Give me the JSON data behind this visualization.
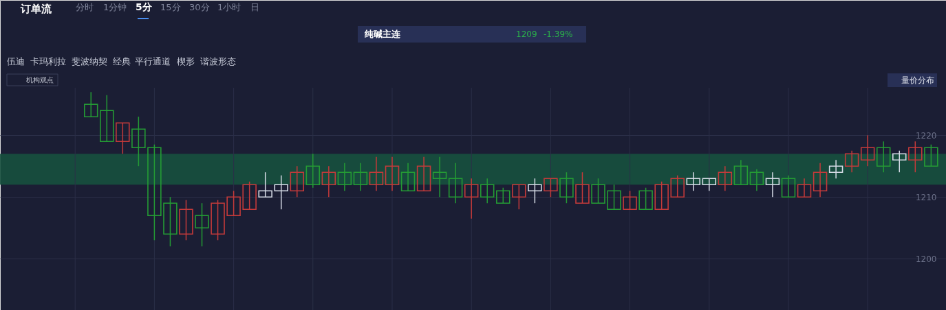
{
  "chart_data": {
    "type": "candlestick",
    "title": "订单流",
    "subtitle": "纯碱主连",
    "annotations": [
      "1209",
      "-1.39%",
      "分时",
      "1分钟",
      "5分",
      "15分",
      "30分",
      "1小时",
      "日",
      "伍迪",
      "卡玛利拉",
      "斐波纳契",
      "经典",
      "平行通道",
      "楔形",
      "谐波形态",
      "机构观点",
      "量价分布"
    ],
    "categories": [
      null,
      null,
      null,
      null,
      null,
      null,
      null,
      null,
      null,
      null,
      null,
      null,
      null,
      null,
      null,
      null,
      null,
      null,
      null,
      null,
      null,
      null,
      null,
      null,
      null,
      null,
      null,
      null,
      null,
      null,
      null,
      null,
      null,
      null,
      null,
      null,
      null,
      null,
      null,
      null,
      null,
      null,
      null,
      null,
      null,
      null,
      null,
      null,
      null,
      null,
      null,
      null,
      null,
      null,
      null,
      null,
      null,
      null
    ],
    "ohlc": [
      null,
      null,
      null,
      null,
      [
        1225,
        1227,
        1223,
        1223
      ],
      [
        1224,
        1226.5,
        1219,
        1219
      ],
      [
        1219,
        1222,
        1217,
        1222
      ],
      [
        1221,
        1223,
        1215,
        1218
      ],
      [
        1218,
        1218.5,
        1203,
        1207
      ],
      [
        1209,
        1210,
        1202,
        1204
      ],
      [
        1204,
        1209.5,
        1203,
        1208
      ],
      [
        1207,
        1209,
        1202,
        1205
      ],
      [
        1204,
        1209.5,
        1203,
        1209
      ],
      [
        1207,
        1211,
        1207,
        1210
      ],
      [
        1208,
        1212.5,
        1208,
        1212
      ],
      [
        1210,
        1214,
        1210,
        1211
      ],
      [
        1211,
        1213.5,
        1208,
        1212
      ],
      [
        1211,
        1215,
        1210,
        1214
      ],
      [
        1215,
        1217,
        1211.5,
        1212
      ],
      [
        1212,
        1215,
        1210,
        1214
      ],
      [
        1214,
        1215.5,
        1211,
        1212
      ],
      [
        1214,
        1215.5,
        1211,
        1212
      ],
      [
        1212,
        1216.5,
        1211,
        1214
      ],
      [
        1212,
        1216.5,
        1211,
        1215
      ],
      [
        1214,
        1215.5,
        1211,
        1211
      ],
      [
        1211,
        1216.5,
        1211,
        1215
      ],
      [
        1214,
        1216.5,
        1210,
        1213
      ],
      [
        1213,
        1215.5,
        1209,
        1210
      ],
      [
        1210,
        1213,
        1206.5,
        1212
      ],
      [
        1212,
        1213,
        1209,
        1210
      ],
      [
        1211,
        1211.5,
        1209,
        1209
      ],
      [
        1210,
        1212,
        1208,
        1212
      ],
      [
        1211,
        1213,
        1209,
        1212
      ],
      [
        1211,
        1213,
        1210,
        1213
      ],
      [
        1213,
        1214,
        1209,
        1210
      ],
      [
        1209,
        1214,
        1209,
        1212
      ],
      [
        1212,
        1213,
        1209,
        1209
      ],
      [
        1211,
        1212,
        1208,
        1208
      ],
      [
        1208,
        1211,
        1208,
        1210
      ],
      [
        1211,
        1211.5,
        1208,
        1208
      ],
      [
        1208,
        1212.5,
        1208,
        1212
      ],
      [
        1210,
        1213.5,
        1210,
        1213
      ],
      [
        1212,
        1214,
        1211,
        1213
      ],
      [
        1212,
        1213,
        1211,
        1213
      ],
      [
        1212,
        1215,
        1211,
        1214
      ],
      [
        1215,
        1216,
        1212,
        1212
      ],
      [
        1214,
        1214.5,
        1211,
        1212
      ],
      [
        1212,
        1214,
        1210,
        1213
      ],
      [
        1213,
        1213.5,
        1210,
        1210
      ],
      [
        1210,
        1213,
        1210,
        1212
      ],
      [
        1211,
        1215.5,
        1210,
        1214
      ],
      [
        1214,
        1216,
        1213,
        1215
      ],
      [
        1215,
        1217.5,
        1214,
        1217
      ],
      [
        1216,
        1220,
        1215,
        1218
      ],
      [
        1218,
        1219,
        1214,
        1215
      ],
      [
        1216,
        1217.5,
        1214,
        1217
      ],
      [
        1216,
        1219,
        1214,
        1218
      ],
      [
        1218,
        1218.5,
        1215,
        1215
      ]
    ],
    "colors": [
      null,
      null,
      null,
      null,
      "#249b34",
      "#249b34",
      "#c43a3a",
      "#249b34",
      "#249b34",
      "#249b34",
      "#c43a3a",
      "#249b34",
      "#c43a3a",
      "#c43a3a",
      "#c43a3a",
      "#d6dbe6",
      "#d6dbe6",
      "#c43a3a",
      "#249b34",
      "#c43a3a",
      "#249b34",
      "#249b34",
      "#c43a3a",
      "#c43a3a",
      "#249b34",
      "#c43a3a",
      "#249b34",
      "#249b34",
      "#c43a3a",
      "#249b34",
      "#249b34",
      "#c43a3a",
      "#d6dbe6",
      "#c43a3a",
      "#249b34",
      "#c43a3a",
      "#249b34",
      "#249b34",
      "#c43a3a",
      "#249b34",
      "#c43a3a",
      "#c43a3a",
      "#d6dbe6",
      "#d6dbe6",
      "#c43a3a",
      "#249b34",
      "#249b34",
      "#d6dbe6",
      "#249b34",
      "#c43a3a",
      "#c43a3a",
      "#d6dbe6",
      "#c43a3a",
      "#c43a3a",
      "#249b34",
      "#d6dbe6",
      "#c43a3a",
      "#249b34"
    ],
    "ylim": [
      1191.7,
      1241.9
    ],
    "yticks": [
      1200,
      1210,
      1220
    ],
    "tick_labels": "y",
    "grid": true,
    "bands": [
      {
        "axis": "y",
        "from": 1212,
        "to": 1217,
        "color": "#17503e"
      }
    ]
  }
}
